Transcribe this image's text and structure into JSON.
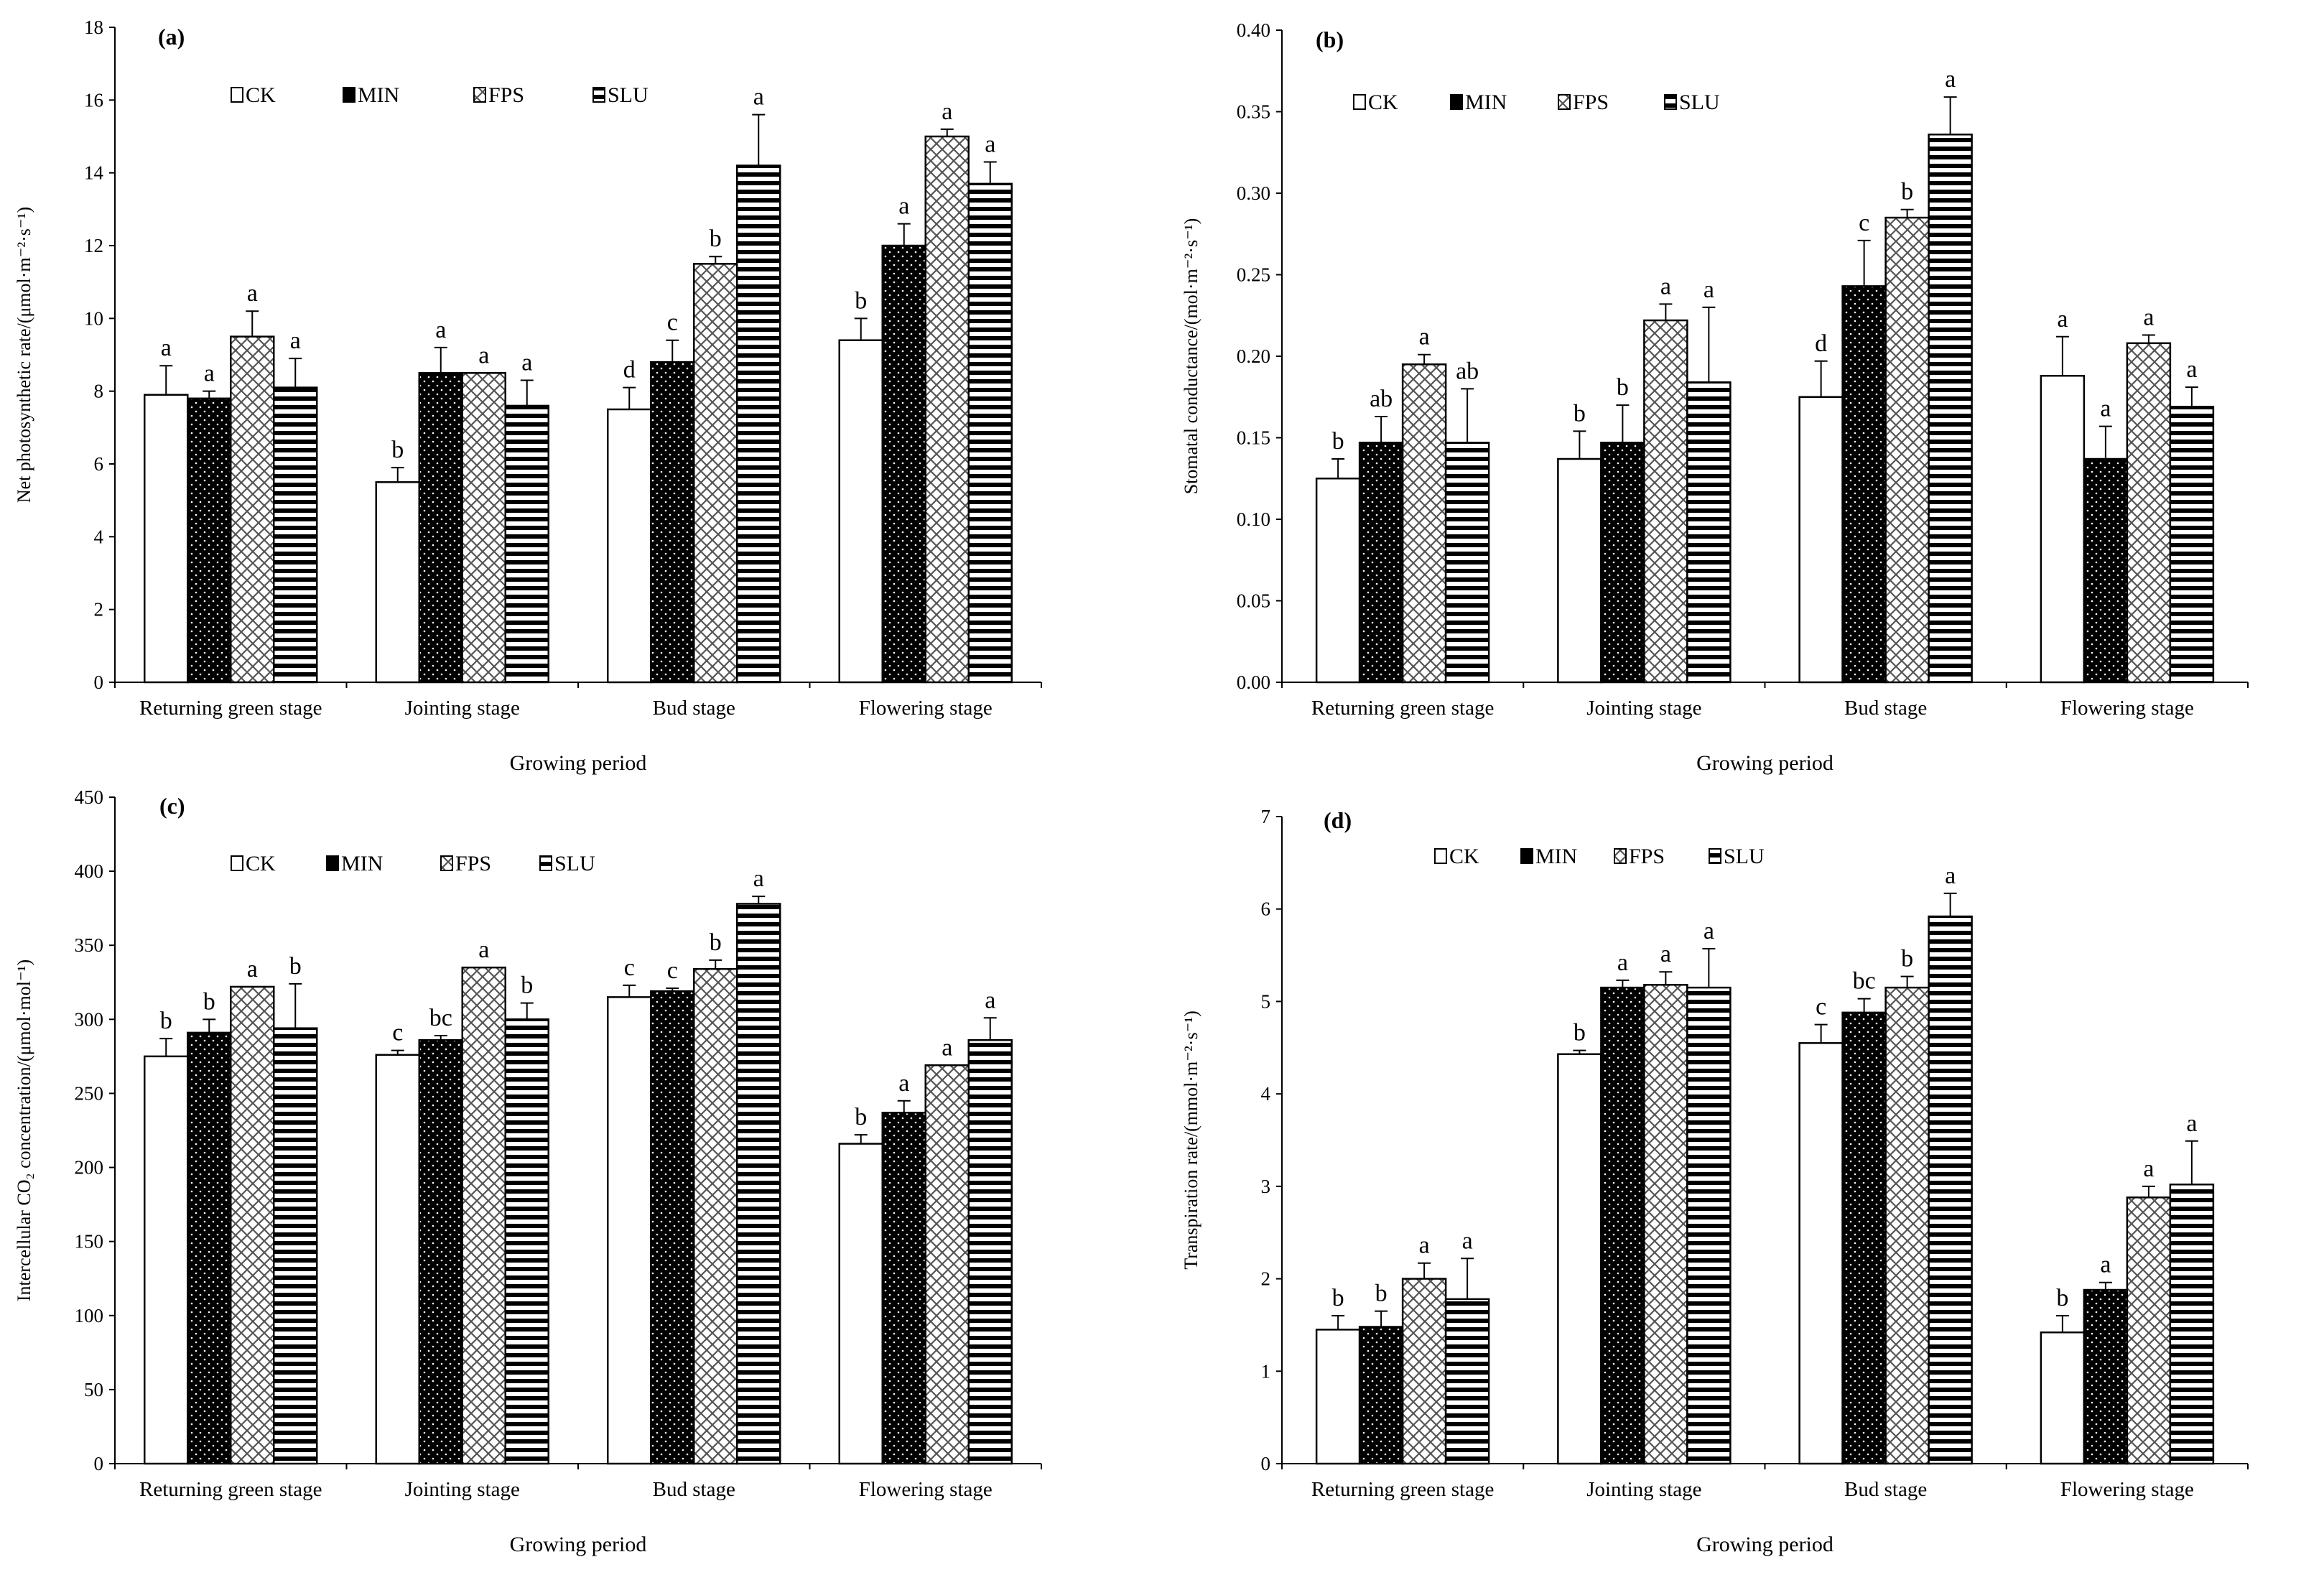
{
  "legend": [
    "CK",
    "MIN",
    "FPS",
    "SLU"
  ],
  "chart_data": [
    {
      "type": "bar",
      "panel_label": "(a)",
      "ylabel": "Net photosynthetic rate/(μmol·m⁻²·s⁻¹)",
      "xlabel": "Growing period",
      "ylim": [
        0,
        18
      ],
      "yticks": [
        "0",
        "2",
        "4",
        "6",
        "8",
        "10",
        "12",
        "14",
        "16",
        "18"
      ],
      "categories": [
        "Returning green stage",
        "Jointing stage",
        "Bud stage",
        "Flowering stage"
      ],
      "series": [
        {
          "name": "CK",
          "values": [
            7.9,
            5.5,
            7.5,
            9.4
          ],
          "errors": [
            0.8,
            0.4,
            0.6,
            0.6
          ],
          "letters": [
            "a",
            "b",
            "d",
            "b"
          ]
        },
        {
          "name": "MIN",
          "values": [
            7.8,
            8.5,
            8.8,
            12.0
          ],
          "errors": [
            0.2,
            0.7,
            0.6,
            0.6
          ],
          "letters": [
            "a",
            "a",
            "c",
            "a"
          ]
        },
        {
          "name": "FPS",
          "values": [
            9.5,
            8.5,
            11.5,
            15.0
          ],
          "errors": [
            0.7,
            0.0,
            0.2,
            0.2
          ],
          "letters": [
            "a",
            "a",
            "b",
            "a"
          ]
        },
        {
          "name": "SLU",
          "values": [
            8.1,
            7.6,
            14.2,
            13.7
          ],
          "errors": [
            0.8,
            0.7,
            1.4,
            0.6
          ],
          "letters": [
            "a",
            "a",
            "a",
            "a"
          ]
        }
      ]
    },
    {
      "type": "bar",
      "panel_label": "(b)",
      "ylabel": "Stomatal conductance/(mol·m⁻²·s⁻¹)",
      "xlabel": "Growing period",
      "ylim": [
        0,
        0.4
      ],
      "yticks": [
        "0.00",
        "0.05",
        "0.10",
        "0.15",
        "0.20",
        "0.25",
        "0.30",
        "0.35",
        "0.40"
      ],
      "categories": [
        "Returning green stage",
        "Jointing stage",
        "Bud stage",
        "Flowering stage"
      ],
      "series": [
        {
          "name": "CK",
          "values": [
            0.125,
            0.137,
            0.175,
            0.188
          ],
          "errors": [
            0.012,
            0.017,
            0.022,
            0.024
          ],
          "letters": [
            "b",
            "b",
            "d",
            "a"
          ]
        },
        {
          "name": "MIN",
          "values": [
            0.147,
            0.147,
            0.243,
            0.137
          ],
          "errors": [
            0.016,
            0.023,
            0.028,
            0.02
          ],
          "letters": [
            "ab",
            "b",
            "c",
            "a"
          ]
        },
        {
          "name": "FPS",
          "values": [
            0.195,
            0.222,
            0.285,
            0.208
          ],
          "errors": [
            0.006,
            0.01,
            0.005,
            0.005
          ],
          "letters": [
            "a",
            "a",
            "b",
            "a"
          ]
        },
        {
          "name": "SLU",
          "values": [
            0.147,
            0.184,
            0.336,
            0.169
          ],
          "errors": [
            0.033,
            0.046,
            0.023,
            0.012
          ],
          "letters": [
            "ab",
            "a",
            "a",
            "a"
          ]
        }
      ]
    },
    {
      "type": "bar",
      "panel_label": "(c)",
      "ylabel": "Intercellular CO₂ concentration/(μmol·mol⁻¹)",
      "xlabel": "Growing period",
      "ylim": [
        0,
        450
      ],
      "yticks": [
        "0",
        "50",
        "100",
        "150",
        "200",
        "250",
        "300",
        "350",
        "400",
        "450"
      ],
      "categories": [
        "Returning green stage",
        "Jointing stage",
        "Bud stage",
        "Flowering stage"
      ],
      "series": [
        {
          "name": "CK",
          "values": [
            275,
            276,
            315,
            216
          ],
          "errors": [
            12,
            3,
            8,
            6
          ],
          "letters": [
            "b",
            "c",
            "c",
            "b"
          ]
        },
        {
          "name": "MIN",
          "values": [
            291,
            286,
            319,
            237
          ],
          "errors": [
            9,
            3,
            2,
            8
          ],
          "letters": [
            "b",
            "bc",
            "c",
            "a"
          ]
        },
        {
          "name": "FPS",
          "values": [
            322,
            335,
            334,
            269
          ],
          "errors": [
            0,
            0,
            6,
            0
          ],
          "letters": [
            "a",
            "a",
            "b",
            "a"
          ]
        },
        {
          "name": "SLU",
          "values": [
            294,
            300,
            378,
            286
          ],
          "errors": [
            30,
            11,
            5,
            15
          ],
          "letters": [
            "b",
            "b",
            "a",
            "a"
          ]
        }
      ]
    },
    {
      "type": "bar",
      "panel_label": "(d)",
      "ylabel": "Transpiration rate/(mmol·m⁻²·s⁻¹)",
      "xlabel": "Growing period",
      "ylim": [
        0,
        7
      ],
      "yticks": [
        "0",
        "1",
        "2",
        "3",
        "4",
        "5",
        "6",
        "7"
      ],
      "categories": [
        "Returning green stage",
        "Jointing stage",
        "Bud stage",
        "Flowering stage"
      ],
      "series": [
        {
          "name": "CK",
          "values": [
            1.45,
            4.43,
            4.55,
            1.42
          ],
          "errors": [
            0.15,
            0.04,
            0.2,
            0.18
          ],
          "letters": [
            "b",
            "b",
            "c",
            "b"
          ]
        },
        {
          "name": "MIN",
          "values": [
            1.48,
            5.15,
            4.88,
            1.88
          ],
          "errors": [
            0.17,
            0.08,
            0.15,
            0.08
          ],
          "letters": [
            "b",
            "a",
            "bc",
            "a"
          ]
        },
        {
          "name": "FPS",
          "values": [
            2.0,
            5.18,
            5.15,
            2.88
          ],
          "errors": [
            0.17,
            0.14,
            0.12,
            0.12
          ],
          "letters": [
            "a",
            "a",
            "b",
            "a"
          ]
        },
        {
          "name": "SLU",
          "values": [
            1.78,
            5.15,
            5.92,
            3.02
          ],
          "errors": [
            0.44,
            0.42,
            0.25,
            0.47
          ],
          "letters": [
            "a",
            "a",
            "a",
            "a"
          ]
        }
      ]
    }
  ]
}
